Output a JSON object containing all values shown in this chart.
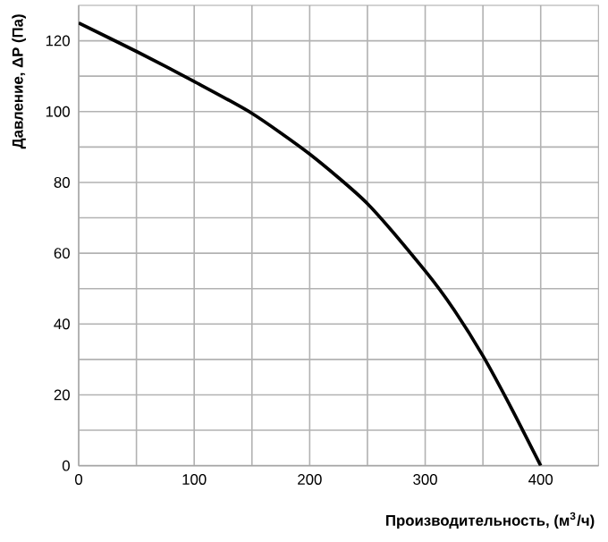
{
  "chart_data": {
    "type": "line",
    "xlabel": "**Производительность, (м$^{3}$/ч)**",
    "ylabel": "**Давление, ΔP (Па)**",
    "x": [
      0,
      50,
      100,
      150,
      200,
      250,
      300,
      325,
      350,
      375,
      400
    ],
    "series": [
      {
        "color": "#000000",
        "values": [
          125,
          117,
          108.5,
          99.5,
          88,
          74,
          55,
          44,
          31,
          16,
          0
        ]
      }
    ],
    "xlim": [
      0,
      450
    ],
    "ylim": [
      0,
      130
    ],
    "xticks": [
      0,
      100,
      200,
      300,
      400
    ],
    "yticks": [
      0,
      20,
      40,
      60,
      80,
      100,
      120
    ],
    "grid": true,
    "marker": "none",
    "line_style": "solid"
  }
}
